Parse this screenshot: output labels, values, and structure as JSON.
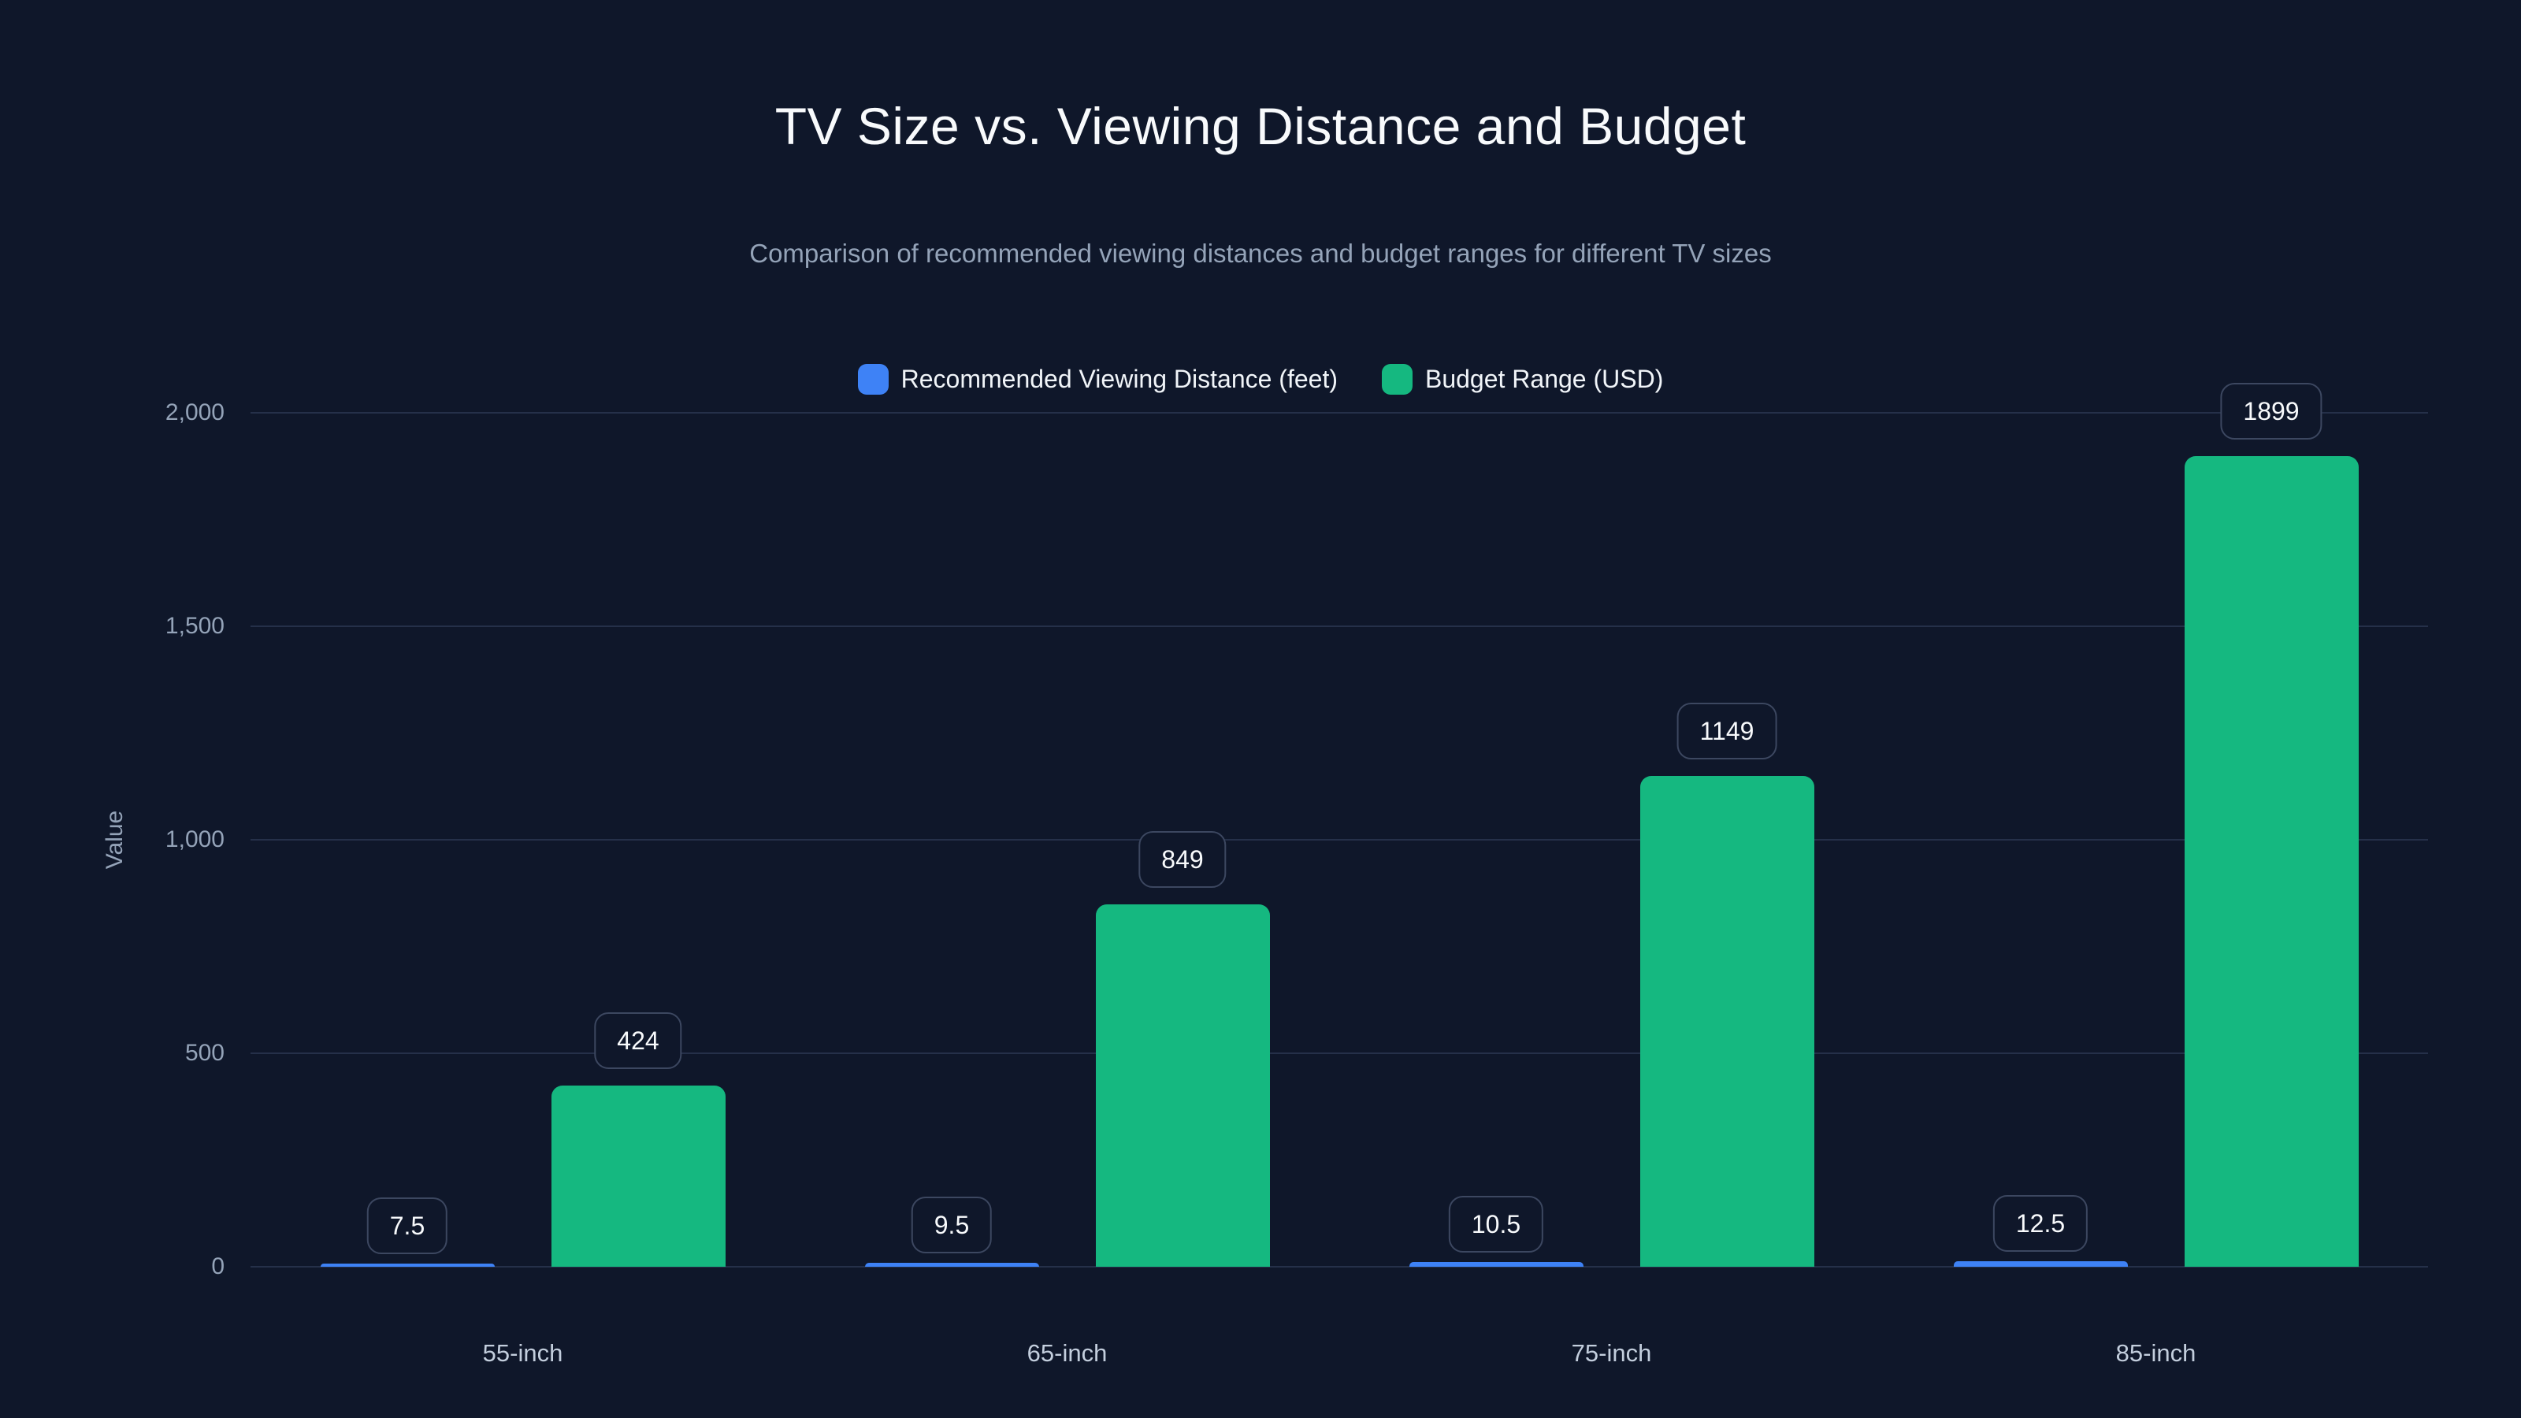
{
  "header": {
    "title": "TV Size vs. Viewing Distance and Budget",
    "subtitle": "Comparison of recommended viewing distances and budget ranges for different TV sizes"
  },
  "colors": {
    "background": "#0f172a",
    "blue_series": "#3e82f6",
    "green_series": "#15b880",
    "gridline": "#253049",
    "tick_text": "#94a3b8",
    "x_label_text": "#c3cedd",
    "value_box_border": "#3c4760",
    "value_box_text": "#f8fafc"
  },
  "chart_data": {
    "type": "bar",
    "title": "TV Size vs. Viewing Distance and Budget",
    "subtitle": "Comparison of recommended viewing distances and budget ranges for different TV sizes",
    "categories": [
      "55-inch",
      "65-inch",
      "75-inch",
      "85-inch"
    ],
    "series": [
      {
        "name": "Recommended Viewing Distance (feet)",
        "color": "#3e82f6",
        "values": [
          7.5,
          9.5,
          10.5,
          12.5
        ],
        "value_labels": [
          "7.5",
          "9.5",
          "10.5",
          "12.5"
        ]
      },
      {
        "name": "Budget Range (USD)",
        "color": "#15b880",
        "values": [
          424,
          849,
          1149,
          1899
        ],
        "value_labels": [
          "424",
          "849",
          "1149",
          "1899"
        ]
      }
    ],
    "xlabel": "",
    "ylabel": "Value",
    "ylim": [
      0,
      2000
    ],
    "y_ticks": [
      {
        "value": 0,
        "label": "0"
      },
      {
        "value": 500,
        "label": "500"
      },
      {
        "value": 1000,
        "label": "1,000"
      },
      {
        "value": 1500,
        "label": "1,500"
      },
      {
        "value": 2000,
        "label": "2,000"
      }
    ],
    "grid": true,
    "legend_position": "top-center",
    "value_labels_shown": true
  }
}
